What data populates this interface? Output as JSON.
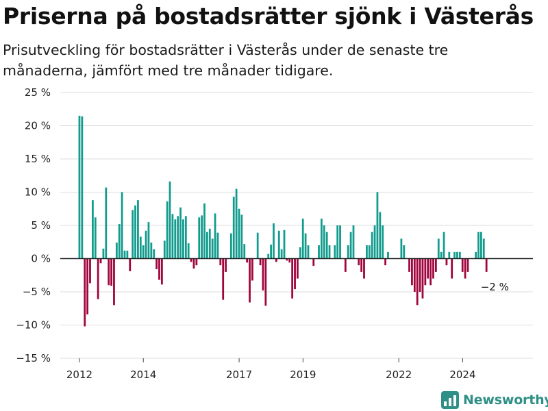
{
  "header": {
    "title": "Priserna på bostadsrätter sjönk i Västerås",
    "subtitle": "Prisutveckling för bostadsrätter i Västerås under de senaste tre månaderna, jämfört med tre månader tidigare."
  },
  "brand": {
    "name": "Newsworthy",
    "icon": "bar-chart-logo-icon",
    "color": "#2e8f86"
  },
  "chart_data": {
    "type": "bar",
    "title": "Priserna på bostadsrätter sjönk i Västerås",
    "subtitle": "Prisutveckling för bostadsrätter i Västerås under de senaste tre månaderna, jämfört med tre månader tidigare.",
    "xlabel": "",
    "ylabel": "",
    "ylim": [
      -15,
      25
    ],
    "y_ticks": [
      25,
      20,
      15,
      10,
      5,
      0,
      -5,
      -10,
      -15
    ],
    "y_tick_labels": [
      "25 %",
      "20 %",
      "15 %",
      "10 %",
      "5 %",
      "0 %",
      "−5 %",
      "−10 %",
      "−15 %"
    ],
    "x_tick_labels": [
      "2012",
      "2014",
      "2017",
      "2019",
      "2022",
      "2024"
    ],
    "x_tick_values": [
      2012.0,
      2014.0,
      2017.0,
      2019.0,
      2022.0,
      2024.0
    ],
    "x_range": [
      2011.4,
      2026.2
    ],
    "grid": true,
    "legend": "none",
    "colors": {
      "positive": "#139c8e",
      "negative": "#a0063d"
    },
    "start": 2012.0,
    "step": 0.0833,
    "values": [
      21.5,
      21.4,
      -10.2,
      -8.4,
      -3.7,
      8.8,
      6.2,
      -6.1,
      -0.7,
      1.5,
      10.7,
      -4.0,
      -4.1,
      -7.0,
      2.4,
      5.2,
      10.0,
      1.2,
      1.2,
      -1.9,
      7.3,
      8.0,
      8.8,
      3.3,
      2.0,
      4.2,
      5.5,
      2.4,
      1.4,
      -1.6,
      -3.2,
      -3.9,
      2.7,
      8.6,
      11.6,
      6.7,
      5.9,
      6.4,
      7.7,
      5.9,
      6.4,
      2.3,
      -0.5,
      -1.5,
      -1.0,
      6.2,
      6.5,
      8.3,
      4.0,
      4.5,
      3.0,
      6.8,
      3.9,
      -1.0,
      -6.2,
      -2.0,
      0.0,
      3.8,
      9.3,
      10.5,
      7.5,
      6.6,
      2.2,
      -0.6,
      -6.6,
      -3.3,
      0.0,
      3.9,
      -1.0,
      -4.8,
      -7.1,
      0.7,
      2.1,
      5.3,
      -0.5,
      4.2,
      1.4,
      4.3,
      -0.3,
      -0.6,
      -6.0,
      -4.6,
      -3.0,
      1.7,
      6.0,
      3.8,
      2.0,
      0.0,
      -1.1,
      0.0,
      2.0,
      6.0,
      5.0,
      4.0,
      2.0,
      0.0,
      2.0,
      5.0,
      5.0,
      0.0,
      -2.0,
      2.0,
      4.0,
      5.0,
      0.0,
      -1.0,
      -2.0,
      -3.0,
      2.0,
      2.0,
      4.0,
      5.0,
      10.0,
      7.0,
      5.0,
      -1.0,
      1.0,
      0.0,
      0.0,
      0.0,
      0.0,
      3.0,
      2.0,
      0.0,
      -2.0,
      -4.0,
      -5.0,
      -7.0,
      -5.0,
      -6.0,
      -4.0,
      -3.0,
      -4.0,
      -3.0,
      -2.0,
      3.0,
      1.0,
      4.0,
      -1.0,
      1.0,
      -3.0,
      1.0,
      1.0,
      1.0,
      -2.0,
      -3.0,
      -2.0,
      0.0,
      0.0,
      1.0,
      4.0,
      4.0,
      3.0,
      -2.0
    ],
    "annotation": {
      "text": "−2 %",
      "x": 2024.5,
      "y": -2.0
    }
  }
}
